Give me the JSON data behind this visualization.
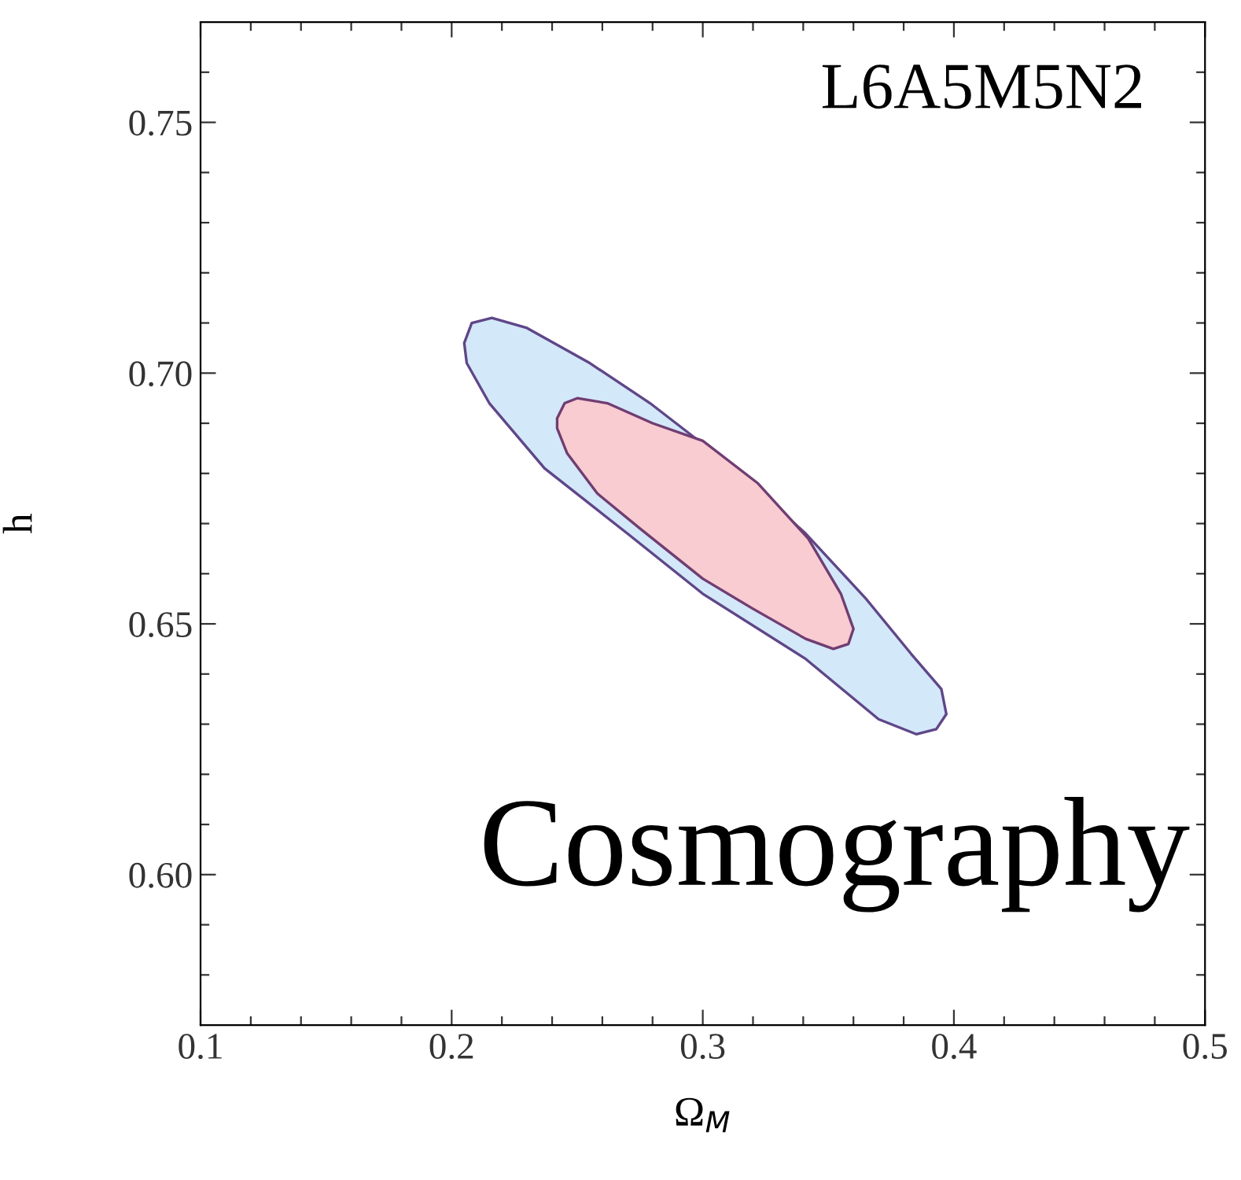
{
  "chart_data": {
    "type": "area",
    "xlabel": "Ω$_{M}$",
    "ylabel": "h",
    "annotations": [
      "L6A5M5N2",
      "Cosmography"
    ],
    "xlim": [
      0.1,
      0.5
    ],
    "ylim": [
      0.57,
      0.77
    ],
    "xticks": [
      {
        "value": 0.1,
        "label": "0.1"
      },
      {
        "value": 0.12,
        "label": null
      },
      {
        "value": 0.14,
        "label": null
      },
      {
        "value": 0.16,
        "label": null
      },
      {
        "value": 0.18,
        "label": null
      },
      {
        "value": 0.2,
        "label": "0.2"
      },
      {
        "value": 0.22,
        "label": null
      },
      {
        "value": 0.24,
        "label": null
      },
      {
        "value": 0.26,
        "label": null
      },
      {
        "value": 0.28,
        "label": null
      },
      {
        "value": 0.3,
        "label": "0.3"
      },
      {
        "value": 0.32,
        "label": null
      },
      {
        "value": 0.34,
        "label": null
      },
      {
        "value": 0.36,
        "label": null
      },
      {
        "value": 0.38,
        "label": null
      },
      {
        "value": 0.4,
        "label": "0.4"
      },
      {
        "value": 0.42,
        "label": null
      },
      {
        "value": 0.44,
        "label": null
      },
      {
        "value": 0.46,
        "label": null
      },
      {
        "value": 0.48,
        "label": null
      },
      {
        "value": 0.5,
        "label": "0.5"
      }
    ],
    "yticks": [
      {
        "value": 0.58,
        "label": null
      },
      {
        "value": 0.59,
        "label": null
      },
      {
        "value": 0.6,
        "label": "0.60"
      },
      {
        "value": 0.61,
        "label": null
      },
      {
        "value": 0.62,
        "label": null
      },
      {
        "value": 0.63,
        "label": null
      },
      {
        "value": 0.64,
        "label": null
      },
      {
        "value": 0.65,
        "label": "0.65"
      },
      {
        "value": 0.66,
        "label": null
      },
      {
        "value": 0.67,
        "label": null
      },
      {
        "value": 0.68,
        "label": null
      },
      {
        "value": 0.69,
        "label": null
      },
      {
        "value": 0.7,
        "label": "0.70"
      },
      {
        "value": 0.71,
        "label": null
      },
      {
        "value": 0.72,
        "label": null
      },
      {
        "value": 0.73,
        "label": null
      },
      {
        "value": 0.74,
        "label": null
      },
      {
        "value": 0.75,
        "label": "0.75"
      },
      {
        "value": 0.76,
        "label": null
      }
    ],
    "grid": false,
    "series": [
      {
        "color": "#d3e8f8",
        "x": [
          0.205,
          0.208,
          0.216,
          0.23,
          0.255,
          0.279,
          0.31,
          0.341,
          0.365,
          0.383,
          0.395,
          0.397,
          0.393,
          0.385,
          0.37,
          0.341,
          0.3,
          0.27,
          0.237,
          0.215,
          0.206
        ],
        "values": [
          0.706,
          0.71,
          0.711,
          0.709,
          0.702,
          0.694,
          0.682,
          0.668,
          0.655,
          0.644,
          0.637,
          0.632,
          0.629,
          0.628,
          0.631,
          0.643,
          0.656,
          0.668,
          0.681,
          0.694,
          0.702
        ]
      },
      {
        "color": "#f8ccd0",
        "x": [
          0.242,
          0.245,
          0.25,
          0.262,
          0.28,
          0.3,
          0.322,
          0.342,
          0.355,
          0.36,
          0.358,
          0.352,
          0.341,
          0.32,
          0.3,
          0.275,
          0.258,
          0.246,
          0.242
        ],
        "values": [
          0.691,
          0.694,
          0.695,
          0.694,
          0.69,
          0.6865,
          0.678,
          0.667,
          0.656,
          0.649,
          0.646,
          0.645,
          0.647,
          0.653,
          0.659,
          0.669,
          0.676,
          0.684,
          0.689
        ]
      }
    ]
  }
}
